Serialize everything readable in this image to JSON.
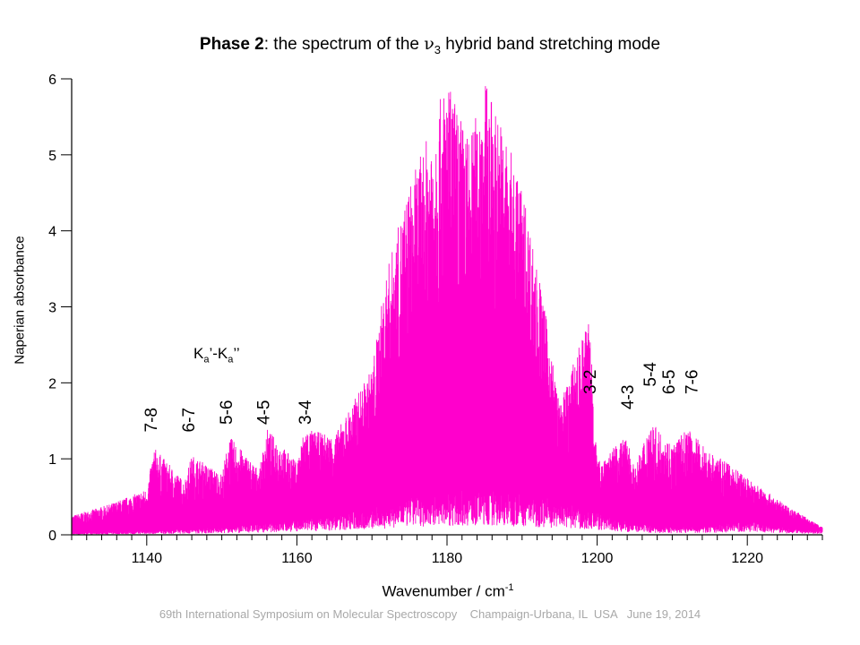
{
  "page": {
    "title_bold": "Phase 2",
    "title_rest": ": the  spectrum of the ",
    "title_nu": "ν",
    "title_sub": "3",
    "title_end": " hybrid band stretching mode",
    "footer": "69th International Symposium on Molecular Spectroscopy    Champaign-Urbana, IL  USA   June 19, 2014"
  },
  "chart_data": {
    "type": "line",
    "title": "Phase 2: the  spectrum of the ν3 hybrid band stretching mode",
    "xlabel": "Wavenumber / cm",
    "xlabel_sup": "-1",
    "ylabel": "Naperian absorbance",
    "xlim": [
      1130,
      1230
    ],
    "ylim": [
      0,
      6
    ],
    "x_ticks": [
      1140,
      1160,
      1180,
      1200,
      1220
    ],
    "y_ticks": [
      0,
      1,
      2,
      3,
      4,
      5,
      6
    ],
    "grid": false,
    "legend": "none",
    "line_color": "#ff00cc",
    "series": [
      {
        "x": [
          1130,
          1135,
          1140,
          1141,
          1145,
          1146,
          1150,
          1151,
          1155,
          1156,
          1160,
          1161,
          1165,
          1170,
          1172,
          1175,
          1178,
          1180,
          1183,
          1185,
          1187,
          1190,
          1193,
          1195,
          1199,
          1200,
          1204,
          1205,
          1207,
          1210,
          1212,
          1215,
          1218,
          1220,
          1225,
          1230
        ],
        "y": [
          0.25,
          0.4,
          0.6,
          1.15,
          0.7,
          1.05,
          0.8,
          1.3,
          0.85,
          1.4,
          0.95,
          1.4,
          1.3,
          2.2,
          3.5,
          4.6,
          5.4,
          6.0,
          5.2,
          6.0,
          5.5,
          4.6,
          3.0,
          1.7,
          2.9,
          0.95,
          1.3,
          0.85,
          1.5,
          1.2,
          1.4,
          1.1,
          0.9,
          0.75,
          0.4,
          0.1
        ],
        "envelope_x": [
          1130,
          1140,
          1150,
          1160,
          1170,
          1175,
          1180,
          1185,
          1190,
          1195,
          1200,
          1205,
          1210,
          1215,
          1220,
          1225,
          1230
        ],
        "envelope_y": [
          0.02,
          0.05,
          0.1,
          0.2,
          0.35,
          0.5,
          0.6,
          0.6,
          0.55,
          0.45,
          0.3,
          0.15,
          0.1,
          0.12,
          0.2,
          0.1,
          0.05
        ]
      }
    ],
    "annotations": {
      "group_label": "K",
      "group_sub1": "a",
      "group_mid": "’-K",
      "group_sub2": "a",
      "group_end": "’’",
      "modes": [
        {
          "label": "7-8",
          "x": 1140.5
        },
        {
          "label": "6-7",
          "x": 1145.5
        },
        {
          "label": "5-6",
          "x": 1150.5
        },
        {
          "label": "4-5",
          "x": 1155.5
        },
        {
          "label": "3-4",
          "x": 1161.0
        },
        {
          "label": "3-2",
          "x": 1199.0
        },
        {
          "label": "4-3",
          "x": 1204.0
        },
        {
          "label": "5-4",
          "x": 1207.0
        },
        {
          "label": "6-5",
          "x": 1209.5
        },
        {
          "label": "7-6",
          "x": 1212.5
        }
      ],
      "mode_label_y": [
        1.35,
        1.35,
        1.45,
        1.45,
        1.45,
        1.85,
        1.65,
        1.95,
        1.85,
        1.85
      ]
    }
  }
}
